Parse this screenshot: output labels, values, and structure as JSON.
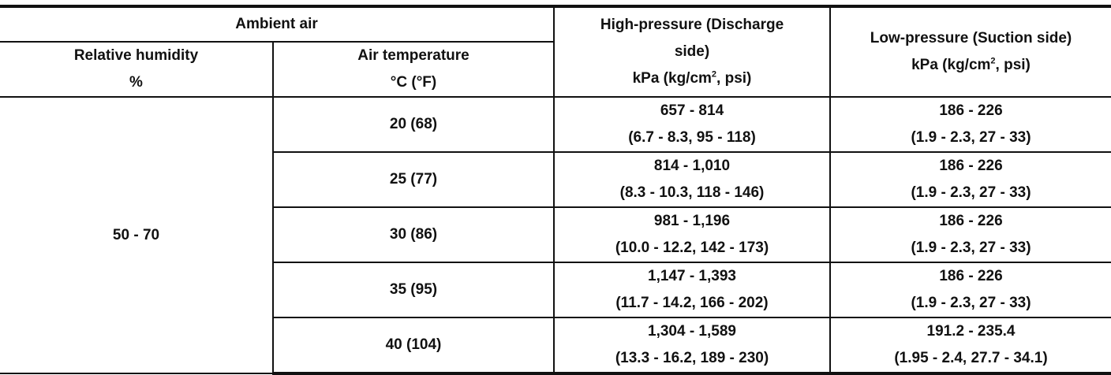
{
  "header": {
    "ambient_air": "Ambient air",
    "relative_humidity": "Relative humidity",
    "relative_humidity_unit": "%",
    "air_temperature": "Air temperature",
    "air_temperature_unit": "°C (°F)",
    "high_pressure_title_line1": "High-pressure (Discharge",
    "high_pressure_title_line2": "side)",
    "high_pressure_unit_prefix": "kPa (kg/cm",
    "high_pressure_unit_sup": "2",
    "high_pressure_unit_suffix": ", psi)",
    "low_pressure_title": "Low-pressure (Suction side)",
    "low_pressure_unit_prefix": "kPa (kg/cm",
    "low_pressure_unit_sup": "2",
    "low_pressure_unit_suffix": ", psi)"
  },
  "humidity_value": "50 - 70",
  "rows": [
    {
      "temp": "20 (68)",
      "high_kpa": "657 - 814",
      "high_alt": "(6.7 - 8.3, 95 - 118)",
      "low_kpa": "186 - 226",
      "low_alt": "(1.9 - 2.3, 27 - 33)"
    },
    {
      "temp": "25 (77)",
      "high_kpa": "814 - 1,010",
      "high_alt": "(8.3 - 10.3, 118 - 146)",
      "low_kpa": "186 - 226",
      "low_alt": "(1.9 - 2.3, 27 - 33)"
    },
    {
      "temp": "30 (86)",
      "high_kpa": "981 - 1,196",
      "high_alt": "(10.0 - 12.2, 142 - 173)",
      "low_kpa": "186 - 226",
      "low_alt": "(1.9 - 2.3, 27 - 33)"
    },
    {
      "temp": "35 (95)",
      "high_kpa": "1,147 - 1,393",
      "high_alt": "(11.7 - 14.2, 166 - 202)",
      "low_kpa": "186 - 226",
      "low_alt": "(1.9 - 2.3, 27 - 33)"
    },
    {
      "temp": "40 (104)",
      "high_kpa": "1,304 - 1,589",
      "high_alt": "(13.3 - 16.2, 189 - 230)",
      "low_kpa": "191.2 - 235.4",
      "low_alt": "(1.95 - 2.4, 27.7 - 34.1)"
    }
  ]
}
